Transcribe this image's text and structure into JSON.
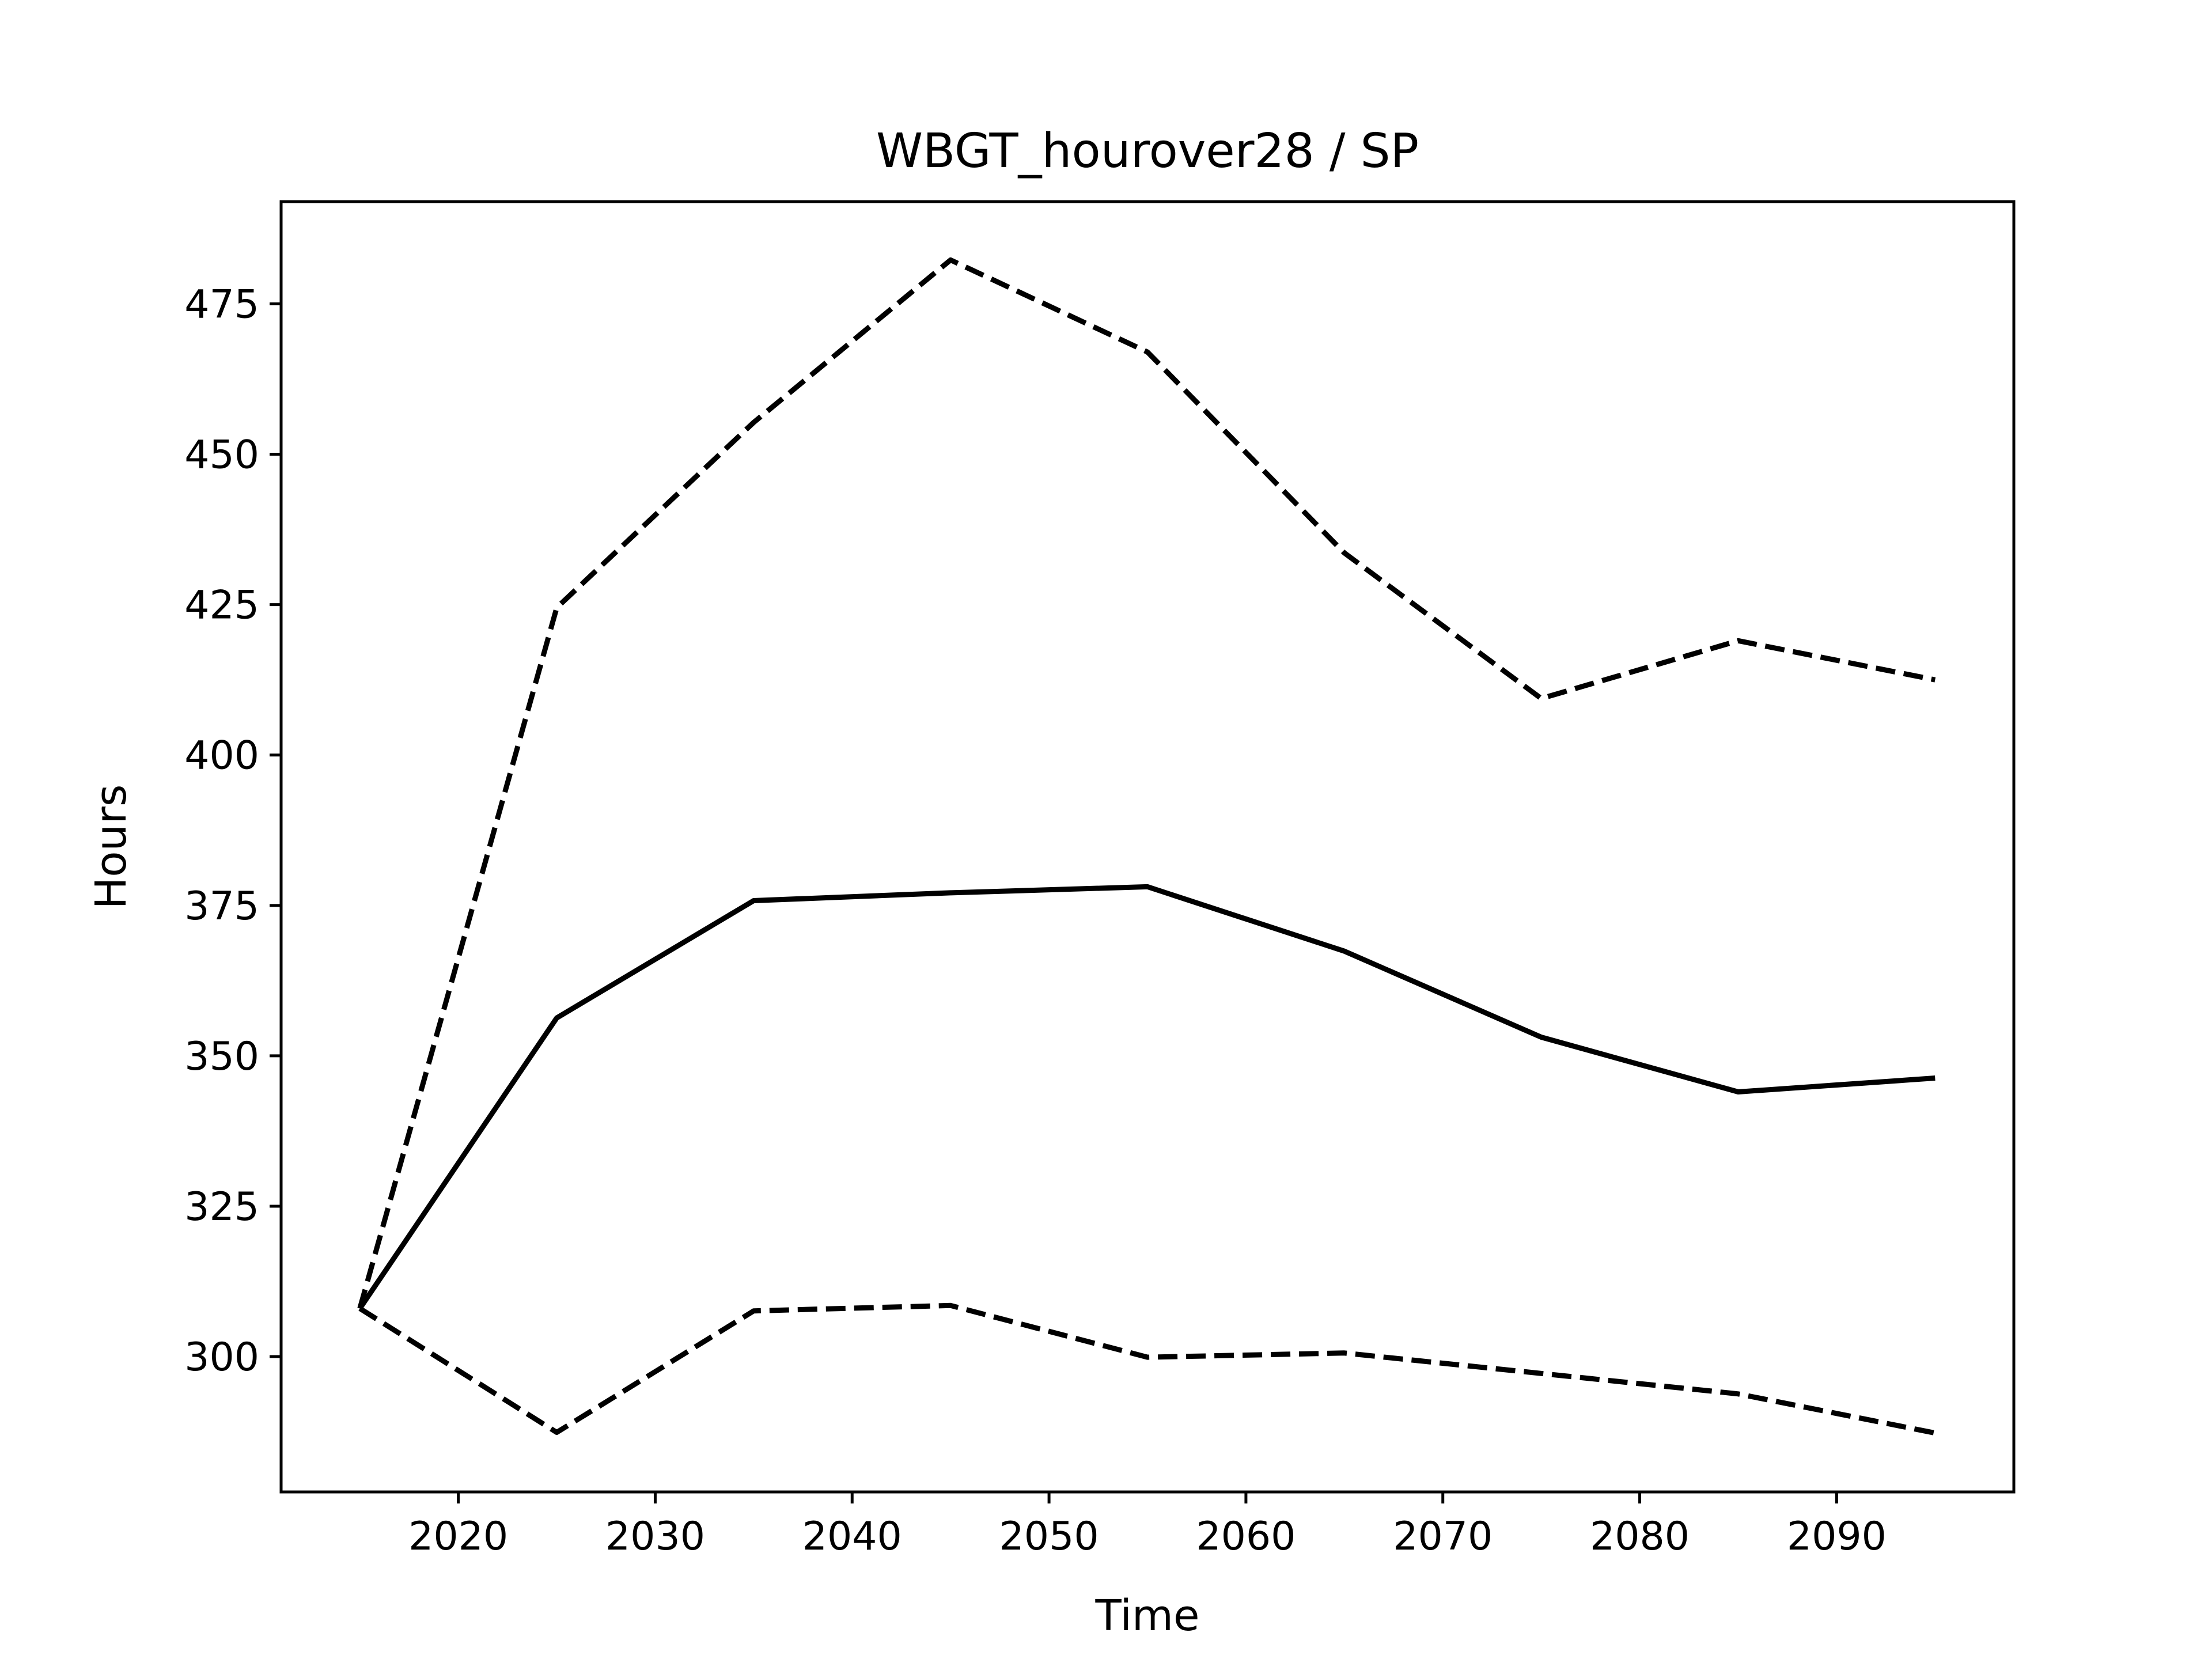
{
  "chart_data": {
    "type": "line",
    "title": "WBGT_hourover28 / SP",
    "xlabel": "Time",
    "ylabel": "Hours",
    "x": [
      2015,
      2025,
      2035,
      2045,
      2055,
      2065,
      2075,
      2085,
      2095
    ],
    "series": [
      {
        "style": "solid",
        "color": "#000000",
        "values": [
          308,
          356.3,
          375.8,
          377.1,
          378.1,
          367.4,
          353.1,
          344.0,
          346.3
        ]
      },
      {
        "style": "dashed",
        "color": "#000000",
        "values": [
          308,
          424.5,
          455.3,
          482.3,
          467.0,
          433.6,
          409.4,
          419.0,
          412.5
        ]
      },
      {
        "style": "dashed",
        "color": "#000000",
        "values": [
          308,
          287.4,
          307.6,
          308.5,
          299.9,
          300.6,
          297.2,
          293.8,
          287.3
        ]
      }
    ],
    "xlim": [
      2011,
      2099
    ],
    "ylim": [
      277.5,
      492
    ],
    "xticks": [
      2020,
      2030,
      2040,
      2050,
      2060,
      2070,
      2080,
      2090
    ],
    "yticks": [
      300,
      325,
      350,
      375,
      400,
      425,
      450,
      475
    ],
    "grid": false,
    "legend": "none"
  }
}
